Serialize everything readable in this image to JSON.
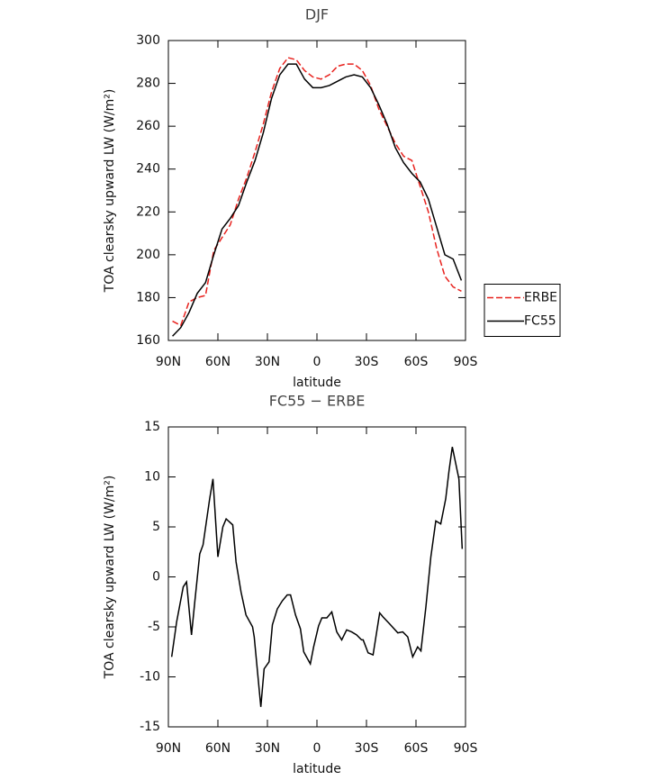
{
  "chart_data": [
    {
      "type": "line",
      "title": "DJF",
      "x_label": "latitude",
      "y_label": "TOA clearsky upward LW (W/m²)",
      "xlim": [
        90,
        -90
      ],
      "xticks": [
        {
          "value": 90,
          "label": "90N"
        },
        {
          "value": 60,
          "label": "60N"
        },
        {
          "value": 30,
          "label": "30N"
        },
        0,
        {
          "value": -30,
          "label": "30S"
        },
        {
          "value": -60,
          "label": "60S"
        },
        {
          "value": -90,
          "label": "90S"
        }
      ],
      "ylim": [
        160,
        300
      ],
      "yticks": [
        160,
        180,
        200,
        220,
        240,
        260,
        280,
        300
      ],
      "legend": "right",
      "x": [
        87.5,
        82.5,
        77.5,
        72.5,
        67.5,
        62.5,
        57.5,
        52.5,
        47.5,
        42.5,
        37.5,
        32.5,
        27.5,
        22.5,
        17.5,
        12.5,
        7.5,
        2.5,
        -2.5,
        -7.5,
        -12.5,
        -17.5,
        -22.5,
        -27.5,
        -32.5,
        -37.5,
        -42.5,
        -47.5,
        -52.5,
        -57.5,
        -62.5,
        -67.5,
        -72.5,
        -77.5,
        -82.5,
        -87.5
      ],
      "series": [
        {
          "name": "ERBE",
          "color": "#e8221e",
          "dashed": true,
          "values": [
            169,
            167,
            178,
            180,
            181,
            202,
            208,
            214,
            226,
            236,
            248,
            261,
            276,
            287,
            292,
            291,
            286,
            283,
            282,
            284,
            288,
            289,
            289,
            286,
            279,
            268,
            260,
            252,
            246,
            244,
            232,
            220,
            203,
            190,
            185,
            183
          ]
        },
        {
          "name": "FC55",
          "color": "#000000",
          "dashed": false,
          "values": [
            162,
            166,
            173,
            182,
            187,
            200,
            212,
            217,
            223,
            234,
            244,
            257,
            273,
            284,
            289,
            289,
            282,
            278,
            278,
            279,
            281,
            283,
            284,
            283,
            278,
            270,
            261,
            250,
            243,
            238,
            234,
            226,
            213,
            200,
            198,
            188
          ]
        }
      ]
    },
    {
      "type": "line",
      "title": "FC55 − ERBE",
      "x_label": "latitude",
      "y_label": "TOA clearsky upward LW (W/m²)",
      "xlim": [
        90,
        -90
      ],
      "xticks": [
        {
          "value": 90,
          "label": "90N"
        },
        {
          "value": 60,
          "label": "60N"
        },
        {
          "value": 30,
          "label": "30N"
        },
        0,
        {
          "value": -30,
          "label": "30S"
        },
        {
          "value": -60,
          "label": "60S"
        },
        {
          "value": -90,
          "label": "90S"
        }
      ],
      "ylim": [
        -15,
        15
      ],
      "yticks": [
        -15,
        -10,
        -5,
        0,
        5,
        10,
        15
      ],
      "color": "#000000",
      "x": [
        88,
        85,
        81,
        79,
        76,
        74,
        71,
        69,
        65,
        63,
        60,
        57,
        55,
        51,
        49,
        46,
        43,
        39,
        38,
        34,
        32,
        29,
        27,
        24,
        21,
        18,
        16,
        13,
        10,
        8,
        4,
        2,
        -1,
        -3,
        -6,
        -9,
        -12,
        -15,
        -18,
        -21,
        -24,
        -27,
        -28,
        -31,
        -34,
        -38,
        -40,
        -44,
        -49,
        -52,
        -55,
        -58,
        -61,
        -63,
        -66,
        -69,
        -72,
        -75,
        -78,
        -80,
        -82,
        -86,
        -88
      ],
      "values": [
        -8,
        -4.5,
        -1,
        -0.5,
        -5.8,
        -2.5,
        2.3,
        3.2,
        7.8,
        9.8,
        2,
        5,
        5.8,
        5.2,
        1.5,
        -1.5,
        -3.8,
        -5,
        -6,
        -13,
        -9.2,
        -8.5,
        -4.8,
        -3.2,
        -2.4,
        -1.8,
        -1.8,
        -3.8,
        -5.2,
        -7.5,
        -8.7,
        -7,
        -4.9,
        -4.1,
        -4.1,
        -3.5,
        -5.5,
        -6.3,
        -5.3,
        -5.5,
        -5.8,
        -6.3,
        -6.3,
        -7.6,
        -7.8,
        -3.6,
        -4,
        -4.7,
        -5.6,
        -5.5,
        -6,
        -8,
        -7,
        -7.4,
        -3,
        2,
        5.6,
        5.3,
        7.8,
        10.6,
        13,
        9.8,
        2.8
      ]
    }
  ]
}
